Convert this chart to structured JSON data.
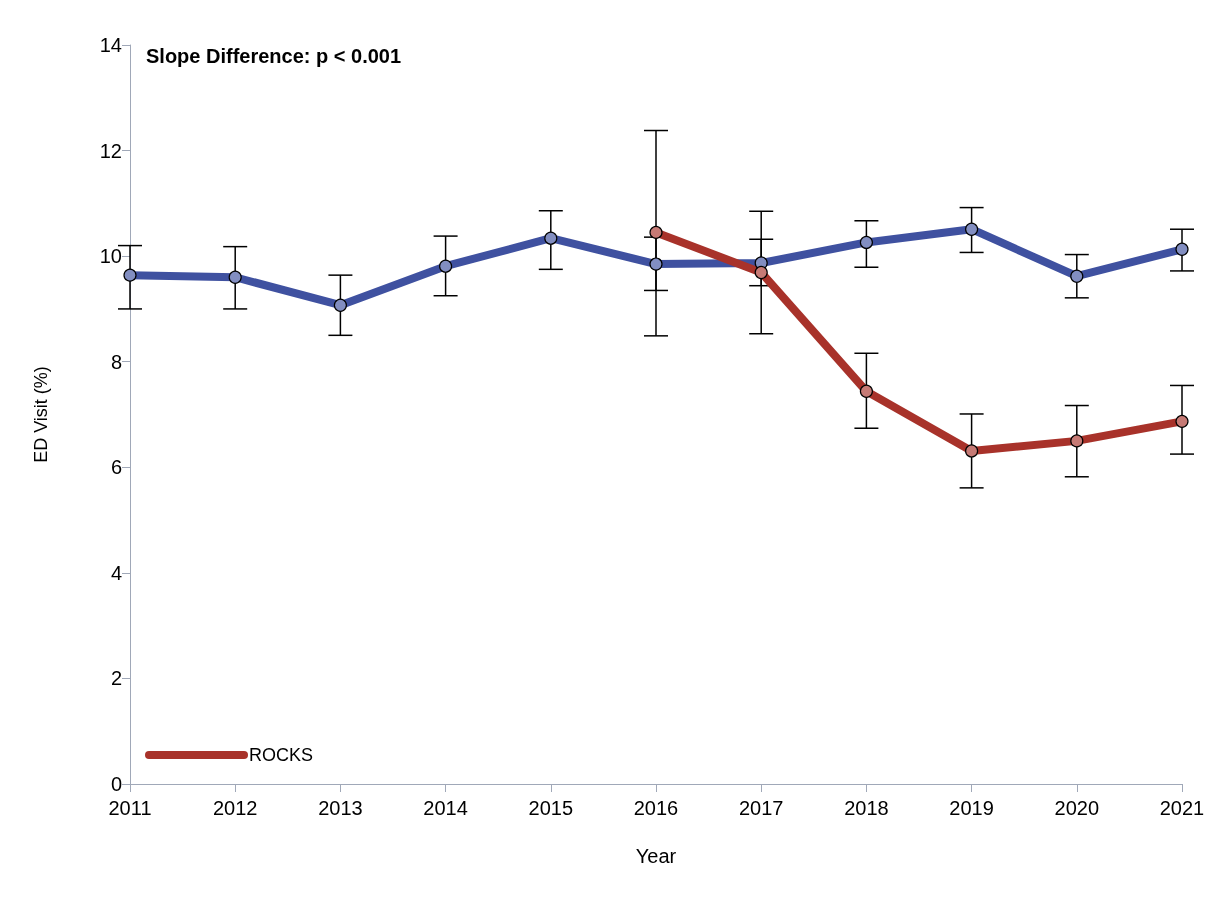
{
  "chart_data": {
    "type": "line",
    "xlabel": "Year",
    "ylabel": "ED Visit (%)",
    "annotations": [
      "Slope Difference: p < 0.001"
    ],
    "categories": [
      "2011",
      "2012",
      "2013",
      "2014",
      "2015",
      "2016",
      "2017",
      "2018",
      "2019",
      "2020",
      "2021"
    ],
    "series": [
      {
        "color": "#3f51a0",
        "values": [
          9.64,
          9.6,
          9.07,
          9.81,
          10.34,
          9.85,
          9.87,
          10.26,
          10.51,
          9.62,
          10.13
        ],
        "errors": [
          [
            9.0,
            10.2
          ],
          [
            9.0,
            10.18
          ],
          [
            8.5,
            9.64
          ],
          [
            9.25,
            10.38
          ],
          [
            9.75,
            10.86
          ],
          [
            9.35,
            10.36
          ],
          [
            9.44,
            10.32
          ],
          [
            9.79,
            10.67
          ],
          [
            10.07,
            10.92
          ],
          [
            9.21,
            10.03
          ],
          [
            9.72,
            10.51
          ]
        ]
      },
      {
        "name": "ROCKS",
        "color": "#a8322a",
        "values": [
          null,
          null,
          null,
          null,
          null,
          10.45,
          9.69,
          7.44,
          6.31,
          6.5,
          6.87
        ],
        "errors": [
          null,
          null,
          null,
          null,
          null,
          [
            8.49,
            12.38
          ],
          [
            8.53,
            10.85
          ],
          [
            6.74,
            8.16
          ],
          [
            5.61,
            7.01
          ],
          [
            5.82,
            7.17
          ],
          [
            6.25,
            7.55
          ]
        ]
      }
    ],
    "ylim": [
      0,
      14
    ],
    "yticks": [
      0,
      2,
      4,
      6,
      8,
      10,
      12,
      14
    ],
    "grid": false,
    "legend": "bottom left",
    "marker": "circle",
    "line_style": "solid"
  }
}
